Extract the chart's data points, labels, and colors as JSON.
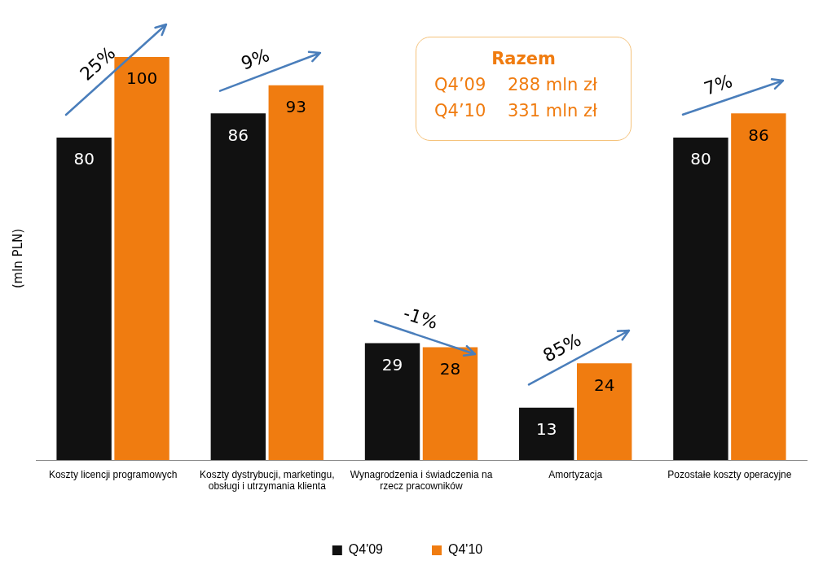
{
  "chart_data": {
    "type": "bar",
    "ylabel": "(mln PLN)",
    "categories": [
      "Koszty licencji programowych",
      "Koszty dystrybucji, marketingu, obsługi i utrzymania klienta",
      "Wynagrodzenia i świadczenia na rzecz pracowników",
      "Amortyzacja",
      "Pozostałe koszty operacyjne"
    ],
    "series": [
      {
        "name": "Q4'09",
        "color": "#111111",
        "values": [
          80,
          86,
          29,
          13,
          80
        ]
      },
      {
        "name": "Q4'10",
        "color": "#f07c10",
        "values": [
          100,
          93,
          28,
          24,
          86
        ]
      }
    ],
    "data_labels": true,
    "legend": "bottom",
    "grid": false,
    "annotations": [
      {
        "text": "25%",
        "x": "Koszty licencji programowych",
        "y": 100
      },
      {
        "text": "9%",
        "x": "Koszty dystrybucji, marketingu, obsługi i utrzymania klienta",
        "y": 93
      },
      {
        "text": "-1%",
        "x": "Wynagrodzenia i świadczenia na rzecz pracowników",
        "y": 28
      },
      {
        "text": "85%",
        "x": "Amortyzacja",
        "y": 24
      },
      {
        "text": "7%",
        "x": "Pozostałe koszty operacyjne",
        "y": 86
      },
      "Razem",
      "Q4’09    288 mln zł",
      "Q4’10    331 mln zł"
    ]
  }
}
